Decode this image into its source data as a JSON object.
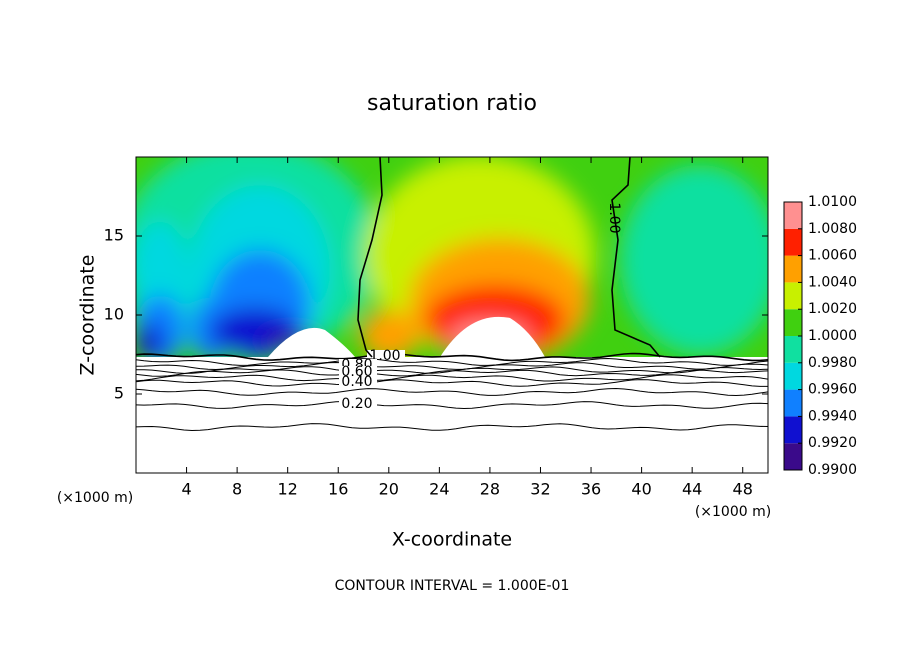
{
  "chart_data": {
    "type": "contour",
    "title": "saturation ratio",
    "x_label": "X-coordinate",
    "y_label": "Z-coordinate",
    "x_unit": "(×1000 m)",
    "y_unit": "(×1000 m)",
    "footnote": "CONTOUR INTERVAL = 1.000E-01",
    "xlim": [
      0,
      50
    ],
    "xticks": [
      4,
      8,
      12,
      16,
      20,
      24,
      28,
      32,
      36,
      40,
      44,
      48
    ],
    "ylim": [
      0,
      20
    ],
    "yticks": [
      5,
      10,
      15
    ],
    "contours": [
      {
        "value": 1,
        "label": "1.00"
      },
      0.9,
      {
        "value": 0.8,
        "label": "0.80"
      },
      0.7,
      {
        "value": 0.6,
        "label": "0.60"
      },
      0.5,
      {
        "value": 0.4,
        "label": "0.40"
      },
      0.3,
      {
        "value": 0.2,
        "label": "0.20"
      },
      0.1
    ],
    "colorbar": {
      "lim": [
        0.99,
        1.01
      ],
      "ticks": [
        {
          "value": 1.01,
          "label": "1.0100"
        },
        {
          "value": 1.008,
          "label": "1.0080"
        },
        {
          "value": 1.006,
          "label": "1.0060"
        },
        {
          "value": 1.004,
          "label": "1.0040"
        },
        {
          "value": 1.002,
          "label": "1.0020"
        },
        {
          "value": 1.0,
          "label": "1.0000"
        },
        {
          "value": 0.998,
          "label": "0.9980"
        },
        {
          "value": 0.996,
          "label": "0.9960"
        },
        {
          "value": 0.994,
          "label": "0.9940"
        },
        {
          "value": 0.992,
          "label": "0.9920"
        },
        {
          "value": 0.99,
          "label": "0.9900"
        }
      ],
      "colors": [
        "#3a0a8a",
        "#1010d0",
        "#1080ff",
        "#00d8e0",
        "#10e0a0",
        "#40d010",
        "#c8f000",
        "#ffa000",
        "#ff2000",
        "#ff9090"
      ]
    }
  }
}
